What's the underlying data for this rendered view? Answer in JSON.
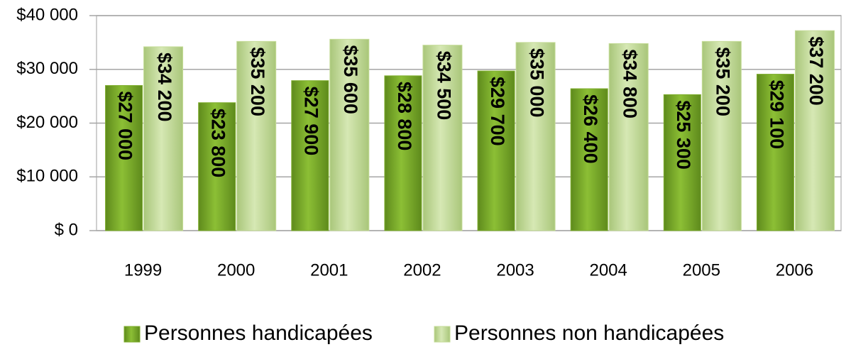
{
  "chart_data": {
    "type": "bar",
    "categories": [
      "1999",
      "2000",
      "2001",
      "2002",
      "2003",
      "2004",
      "2005",
      "2006"
    ],
    "series": [
      {
        "name": "Personnes handicapées",
        "color": "#7fae2e",
        "values": [
          27000,
          23800,
          27900,
          28800,
          29700,
          26400,
          25300,
          29100
        ],
        "value_labels": [
          "$27 000",
          "$23 800",
          "$27 900",
          "$28 800",
          "$29 700",
          "$26 400",
          "$25 300",
          "$29 100"
        ]
      },
      {
        "name": "Personnes non handicapées",
        "color": "#c5dc98",
        "values": [
          34200,
          35200,
          35600,
          34500,
          35000,
          34800,
          35200,
          37200
        ],
        "value_labels": [
          "$34 200",
          "$35 200",
          "$35 600",
          "$34 500",
          "$35 000",
          "$34 800",
          "$35 200",
          "$37 200"
        ]
      }
    ],
    "ylim": [
      0,
      40000
    ],
    "yticks": [
      {
        "value": 0,
        "label": "$ 0"
      },
      {
        "value": 10000,
        "label": "$10 000"
      },
      {
        "value": 20000,
        "label": "$20 000"
      },
      {
        "value": 30000,
        "label": "$30 000"
      },
      {
        "value": 40000,
        "label": "$40 000"
      }
    ],
    "grid": true,
    "legend": "bottom"
  }
}
